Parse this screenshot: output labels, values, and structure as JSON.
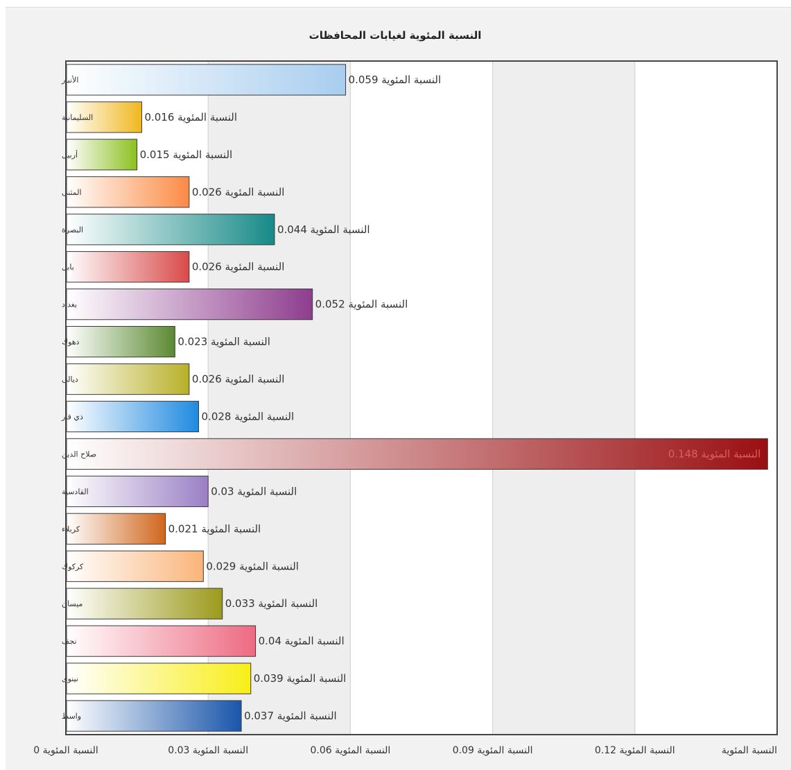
{
  "chart_data": {
    "type": "bar",
    "orientation": "horizontal",
    "title": "النسبة المئوية لغيابات المحافظات",
    "series_label": "النسبة المئوية",
    "categories": [
      "الأنبار",
      "السليمانية",
      "أربيل",
      "المثنى",
      "البصرة",
      "بابل",
      "بغداد",
      "دهوك",
      "ديالى",
      "ذي قار",
      "صلاح الدين",
      "القادسية",
      "كربلاء",
      "كركوك",
      "ميسان",
      "نجف",
      "نينوى",
      "واسط"
    ],
    "values": [
      0.059,
      0.016,
      0.015,
      0.026,
      0.044,
      0.026,
      0.052,
      0.023,
      0.026,
      0.028,
      0.148,
      0.03,
      0.021,
      0.029,
      0.033,
      0.04,
      0.039,
      0.037
    ],
    "value_labels": [
      "0.059",
      "0.016",
      "0.015",
      "0.026",
      "0.044",
      "0.026",
      "0.052",
      "0.023",
      "0.026",
      "0.028",
      "0.148",
      "0.03",
      "0.021",
      "0.029",
      "0.033",
      "0.04",
      "0.039",
      "0.037"
    ],
    "colors": [
      "#a8cdef",
      "#f0b71e",
      "#8cc020",
      "#fb8a44",
      "#178a88",
      "#d94a4a",
      "#8e3d8e",
      "#5b8a32",
      "#b8b028",
      "#1f8ae0",
      "#9a0f12",
      "#9a7fc4",
      "#d0661c",
      "#fab47a",
      "#9c9a1c",
      "#ee6a82",
      "#f8ee18",
      "#1a56aa"
    ],
    "xlim": [
      0,
      0.15
    ],
    "x_ticks": [
      0,
      0.03,
      0.06,
      0.09,
      0.12,
      0.15
    ],
    "x_tick_labels": [
      "0",
      "0.03",
      "0.06",
      "0.09",
      "0.12",
      ""
    ],
    "grid": true,
    "legend": "none"
  }
}
